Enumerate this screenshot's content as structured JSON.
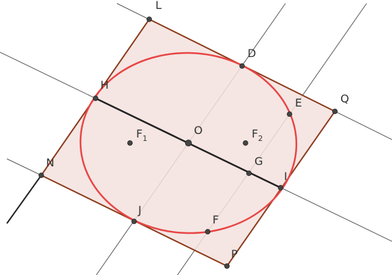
{
  "points": [
    {
      "label": "L"
    },
    {
      "label": "D"
    },
    {
      "label": "Q"
    },
    {
      "label": "E"
    },
    {
      "label": "H"
    },
    {
      "label": "F",
      "sub": "1"
    },
    {
      "label": "O"
    },
    {
      "label": "F",
      "sub": "2"
    },
    {
      "label": "G"
    },
    {
      "label": "N"
    },
    {
      "label": "I"
    },
    {
      "label": "J"
    },
    {
      "label": "F"
    },
    {
      "label": "P"
    }
  ]
}
